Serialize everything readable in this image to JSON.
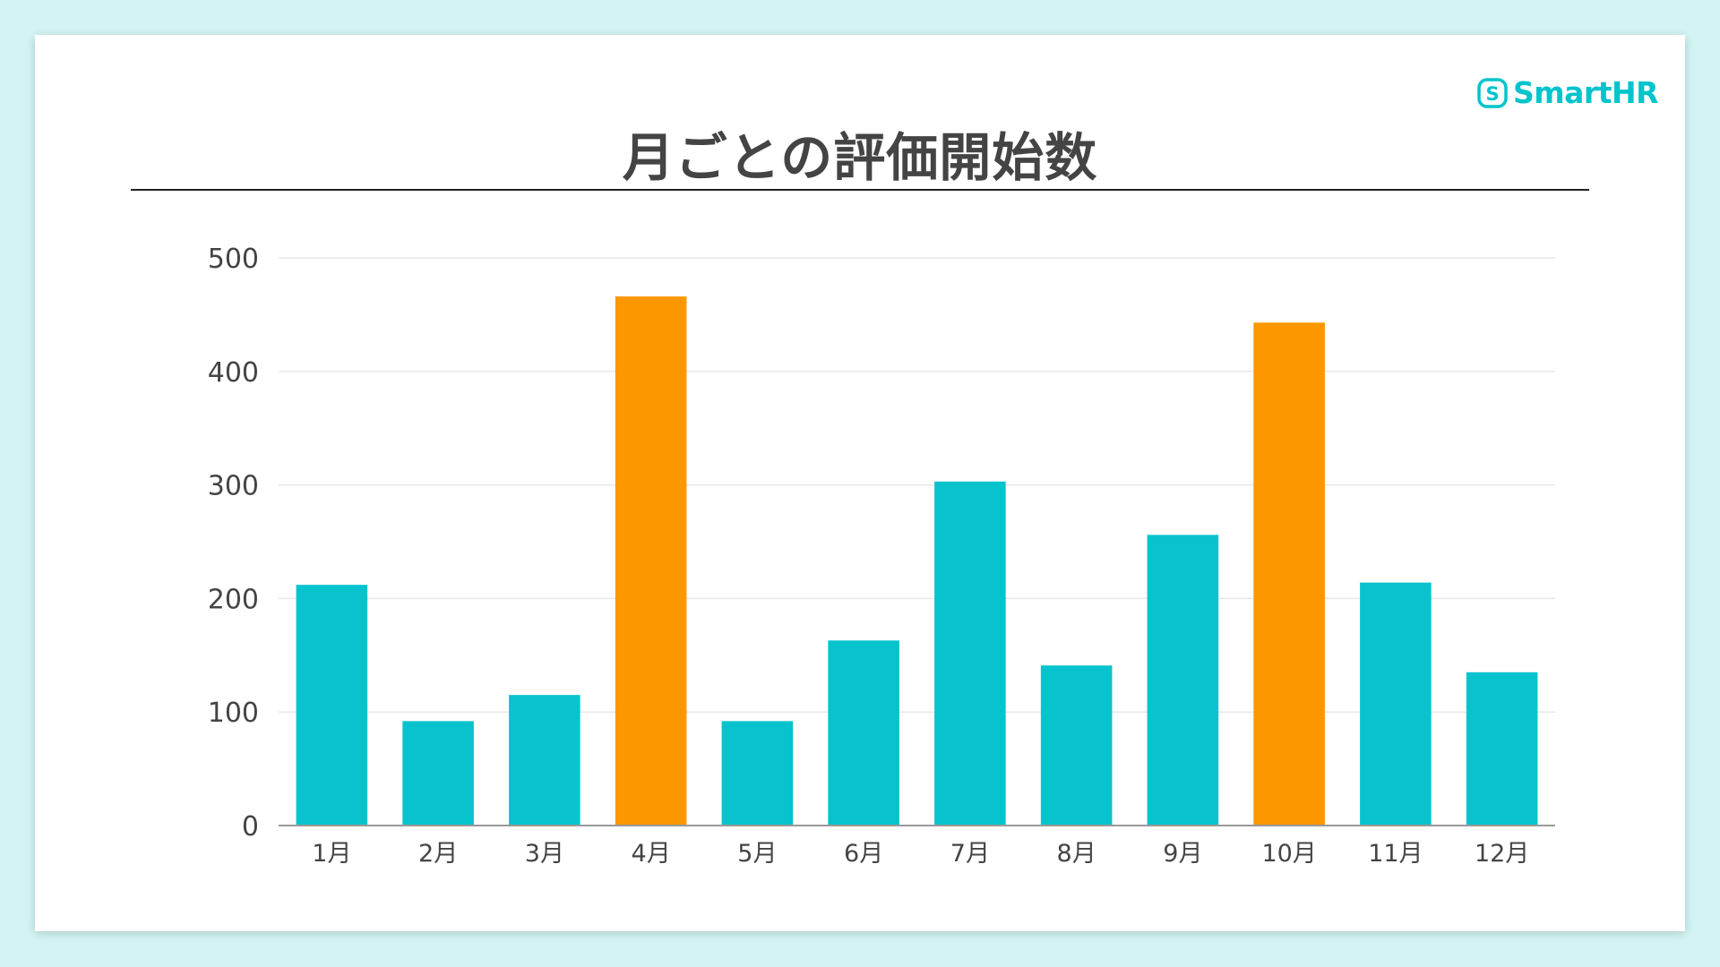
{
  "brand": {
    "name": "SmartHR",
    "icon": "smarthr-logo-icon",
    "color": "#00c4cc"
  },
  "chart_data": {
    "type": "bar",
    "title": "月ごとの評価開始数",
    "xlabel": "",
    "ylabel": "",
    "categories": [
      "1月",
      "2月",
      "3月",
      "4月",
      "5月",
      "6月",
      "7月",
      "8月",
      "9月",
      "10月",
      "11月",
      "12月"
    ],
    "values": [
      212,
      92,
      115,
      466,
      92,
      163,
      303,
      141,
      256,
      443,
      214,
      135
    ],
    "highlighted": [
      "4月",
      "10月"
    ],
    "ylim": [
      0,
      500
    ],
    "yticks": [
      0,
      100,
      200,
      300,
      400,
      500
    ],
    "grid": true,
    "legend": "none",
    "colors": {
      "default": "#08c3cd",
      "highlight": "#fd9700",
      "grid": "#e8e8e8",
      "axis": "#999999"
    }
  }
}
